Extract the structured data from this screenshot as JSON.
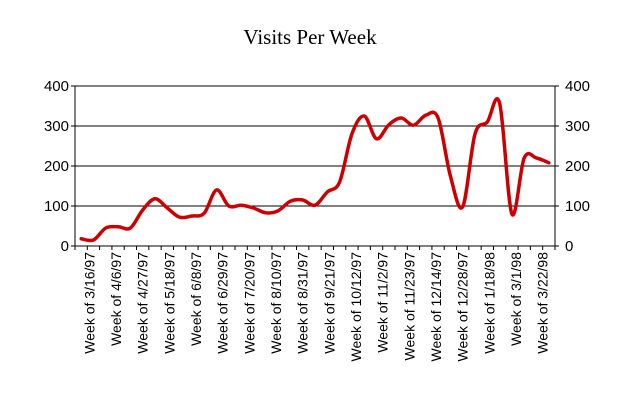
{
  "chart_data": {
    "type": "line",
    "title": "Visits Per Week",
    "xlabel": "",
    "ylabel": "",
    "ylim": [
      0,
      400
    ],
    "yticks": [
      0,
      100,
      200,
      300,
      400
    ],
    "right_axis": true,
    "grid": "horizontal",
    "legend": "none",
    "line_color": "#cc0000",
    "tick_labels": [
      "Week of 3/16/97",
      "Week of 4/6/97",
      "Week of 4/27/97",
      "Week of 5/18/97",
      "Week of 6/8/97",
      "Week of 6/29/97",
      "Week of 7/20/97",
      "Week of 8/10/97",
      "Week of 8/31/97",
      "Week of 9/21/97",
      "Week of 10/12/97",
      "Week of 11/2/97",
      "Week of 11/23/97",
      "Week of 12/14/97",
      "Week of 12/28/97",
      "Week of 1/18/98",
      "Week of 3/1/98",
      "Week of 3/22/98"
    ],
    "points": [
      {
        "i": 0,
        "y": 18
      },
      {
        "i": 1,
        "y": 15
      },
      {
        "i": 2,
        "y": 45
      },
      {
        "i": 3,
        "y": 48
      },
      {
        "i": 4,
        "y": 45
      },
      {
        "i": 5,
        "y": 90
      },
      {
        "i": 6,
        "y": 118
      },
      {
        "i": 7,
        "y": 95
      },
      {
        "i": 8,
        "y": 72
      },
      {
        "i": 9,
        "y": 75
      },
      {
        "i": 10,
        "y": 82
      },
      {
        "i": 11,
        "y": 140
      },
      {
        "i": 12,
        "y": 100
      },
      {
        "i": 13,
        "y": 102
      },
      {
        "i": 14,
        "y": 95
      },
      {
        "i": 15,
        "y": 83
      },
      {
        "i": 16,
        "y": 88
      },
      {
        "i": 17,
        "y": 112
      },
      {
        "i": 18,
        "y": 115
      },
      {
        "i": 19,
        "y": 102
      },
      {
        "i": 20,
        "y": 135
      },
      {
        "i": 21,
        "y": 160
      },
      {
        "i": 22,
        "y": 280
      },
      {
        "i": 23,
        "y": 325
      },
      {
        "i": 24,
        "y": 268
      },
      {
        "i": 25,
        "y": 303
      },
      {
        "i": 26,
        "y": 320
      },
      {
        "i": 27,
        "y": 302
      },
      {
        "i": 28,
        "y": 327
      },
      {
        "i": 29,
        "y": 320
      },
      {
        "i": 30,
        "y": 175
      },
      {
        "i": 31,
        "y": 98
      },
      {
        "i": 32,
        "y": 280
      },
      {
        "i": 33,
        "y": 310
      },
      {
        "i": 34,
        "y": 357
      },
      {
        "i": 35,
        "y": 80
      },
      {
        "i": 36,
        "y": 220
      },
      {
        "i": 37,
        "y": 220
      },
      {
        "i": 38,
        "y": 208
      }
    ]
  }
}
